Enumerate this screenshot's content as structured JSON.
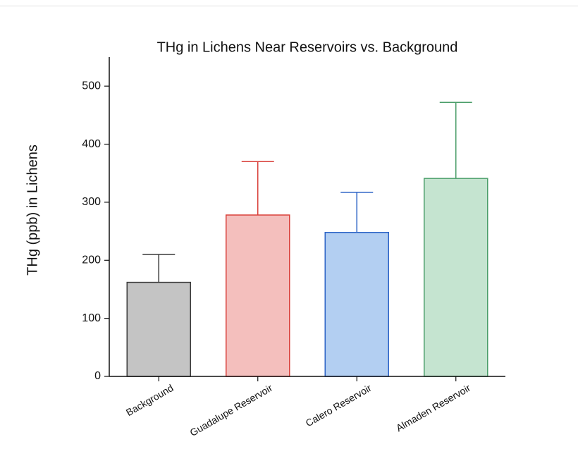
{
  "chart_data": {
    "type": "bar",
    "title": "THg in Lichens Near Reservoirs vs. Background",
    "y_label": "THg (ppb) in Lichens",
    "categories": [
      "Background",
      "Guadalupe Reservoir",
      "Calero Reservoir",
      "Almaden Reservoir"
    ],
    "values": [
      162,
      278,
      248,
      341
    ],
    "errors": [
      48,
      92,
      69,
      131
    ],
    "colors": [
      "#c4c4c4",
      "#f4bfbd",
      "#b3cff2",
      "#c5e4d0"
    ],
    "edge_colors": [
      "#3a3a3a",
      "#d9413b",
      "#2c63c6",
      "#4b9e6a"
    ],
    "ylim": [
      0,
      550
    ],
    "yticks": [
      0,
      100,
      200,
      300,
      400,
      500
    ]
  }
}
